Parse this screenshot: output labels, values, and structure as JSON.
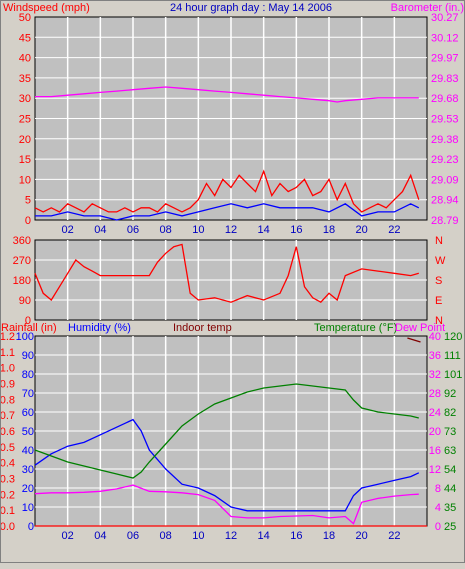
{
  "header": {
    "windspeed_label": "Windspeed (mph)",
    "title": "24 hour graph day : May 14 2006",
    "barometer_label": "Barometer (in.)"
  },
  "lower_header": {
    "rainfall_label": "Rainfall (in)",
    "humidity_label": "Humidity (%)",
    "indoor_label": "Indoor temp",
    "temperature_label": "Temperature (°F)",
    "dewpoint_label": "Dew Point"
  },
  "colors": {
    "wind": "#ff0000",
    "gust": "#0000ff",
    "barometer": "#ff00ff",
    "direction": "#ff0000",
    "rainfall": "#ff0000",
    "humidity": "#0000ff",
    "temperature": "#008000",
    "dewpoint": "#ff00ff",
    "indoor": "#800000",
    "axis_text_blue": "#0000c0",
    "grid": "#ffffff",
    "plot_bg": "#c0c0c0"
  },
  "chart_data": [
    {
      "type": "line",
      "name": "wind-panel",
      "x_ticks": [
        "02",
        "04",
        "06",
        "08",
        "10",
        "12",
        "14",
        "16",
        "18",
        "20",
        "22"
      ],
      "x_range_hours": [
        0,
        24
      ],
      "left_axis": {
        "label": "Windspeed (mph)",
        "ylim": [
          0,
          50
        ],
        "ticks": [
          "0",
          "5",
          "10",
          "15",
          "20",
          "25",
          "30",
          "35",
          "40",
          "45",
          "50"
        ]
      },
      "right_axis": {
        "label": "Barometer (in.)",
        "ylim": [
          28.79,
          30.27
        ],
        "ticks": [
          "28.79",
          "28.94",
          "29.09",
          "29.23",
          "29.38",
          "29.53",
          "29.68",
          "29.83",
          "29.97",
          "30.12",
          "30.27"
        ]
      },
      "series": [
        {
          "name": "Windspeed",
          "axis": "left",
          "color": "#ff0000",
          "x": [
            0,
            0.5,
            1,
            1.5,
            2,
            2.5,
            3,
            3.5,
            4,
            4.5,
            5,
            5.5,
            6,
            6.5,
            7,
            7.5,
            8,
            8.5,
            9,
            9.5,
            10,
            10.5,
            11,
            11.5,
            12,
            12.5,
            13,
            13.5,
            14,
            14.5,
            15,
            15.5,
            16,
            16.5,
            17,
            17.5,
            18,
            18.5,
            19,
            19.5,
            20,
            20.5,
            21,
            21.5,
            22,
            22.5,
            23,
            23.5
          ],
          "values": [
            3,
            2,
            3,
            2,
            4,
            3,
            2,
            4,
            3,
            2,
            2,
            3,
            2,
            3,
            3,
            2,
            4,
            3,
            2,
            3,
            5,
            9,
            6,
            10,
            8,
            11,
            9,
            7,
            12,
            6,
            9,
            7,
            8,
            10,
            6,
            7,
            10,
            5,
            9,
            4,
            2,
            3,
            4,
            3,
            5,
            7,
            11,
            5
          ]
        },
        {
          "name": "Gust",
          "axis": "left",
          "color": "#0000ff",
          "x": [
            0,
            1,
            2,
            3,
            4,
            5,
            6,
            7,
            8,
            9,
            10,
            11,
            12,
            13,
            14,
            15,
            16,
            17,
            18,
            19,
            20,
            21,
            22,
            23,
            23.5
          ],
          "values": [
            1,
            1,
            2,
            1,
            1,
            0,
            1,
            1,
            2,
            1,
            2,
            3,
            4,
            3,
            4,
            3,
            3,
            3,
            2,
            4,
            1,
            2,
            2,
            4,
            3
          ]
        },
        {
          "name": "Barometer",
          "axis": "right",
          "color": "#ff00ff",
          "x": [
            0,
            1,
            2,
            3,
            4,
            5,
            6,
            7,
            8,
            9,
            10,
            11,
            12,
            13,
            14,
            15,
            16,
            17,
            18,
            18.5,
            19,
            20,
            21,
            22,
            23,
            23.5
          ],
          "values": [
            29.69,
            29.69,
            29.7,
            29.71,
            29.72,
            29.73,
            29.74,
            29.75,
            29.76,
            29.75,
            29.74,
            29.73,
            29.72,
            29.71,
            29.7,
            29.69,
            29.68,
            29.67,
            29.66,
            29.65,
            29.66,
            29.67,
            29.68,
            29.68,
            29.68,
            29.68
          ]
        }
      ]
    },
    {
      "type": "line",
      "name": "direction-panel",
      "x_range_hours": [
        0,
        24
      ],
      "left_axis": {
        "ylim": [
          0,
          360
        ],
        "ticks": [
          "0",
          "90",
          "180",
          "270",
          "360"
        ]
      },
      "right_axis": {
        "ticks": [
          "N",
          "E",
          "S",
          "W",
          "N"
        ]
      },
      "series": [
        {
          "name": "Wind direction",
          "color": "#ff0000",
          "x": [
            0,
            0.5,
            1,
            1.5,
            2,
            2.5,
            3,
            3.5,
            4,
            5,
            6,
            7,
            7.5,
            8,
            8.5,
            9,
            9.5,
            10,
            11,
            12,
            13,
            14,
            15,
            15.5,
            16,
            16.5,
            17,
            17.5,
            18,
            18.5,
            19,
            20,
            21,
            22,
            23,
            23.5
          ],
          "values": [
            210,
            120,
            90,
            150,
            210,
            270,
            240,
            220,
            200,
            200,
            200,
            200,
            260,
            300,
            330,
            340,
            120,
            90,
            100,
            80,
            110,
            90,
            120,
            200,
            330,
            150,
            100,
            80,
            120,
            90,
            200,
            230,
            220,
            210,
            200,
            210
          ]
        }
      ]
    },
    {
      "type": "line",
      "name": "humidity-temp-panel",
      "x_ticks": [
        "02",
        "04",
        "06",
        "08",
        "10",
        "12",
        "14",
        "16",
        "18",
        "20",
        "22"
      ],
      "x_range_hours": [
        0,
        24
      ],
      "axes": {
        "rainfall": {
          "ticks": [
            "0.0",
            "0.1",
            "0.2",
            "0.3",
            "0.4",
            "0.5",
            "0.6",
            "0.7",
            "0.8",
            "0.9",
            "1.0",
            "1.1",
            "1.2"
          ]
        },
        "humidity": {
          "ticks": [
            "0",
            "10",
            "20",
            "30",
            "40",
            "50",
            "60",
            "70",
            "80",
            "90",
            "100"
          ]
        },
        "dewpoint": {
          "ticks": [
            "0",
            "4",
            "8",
            "12",
            "16",
            "20",
            "24",
            "28",
            "32",
            "36",
            "40"
          ]
        },
        "temperature": {
          "ticks": [
            "25",
            "35",
            "44",
            "54",
            "63",
            "73",
            "82",
            "92",
            "101",
            "111",
            "120"
          ]
        }
      },
      "series": [
        {
          "name": "Rainfall",
          "color": "#ff0000",
          "x": [
            0,
            24
          ],
          "values": [
            0.0,
            0.0
          ]
        },
        {
          "name": "Humidity",
          "color": "#0000ff",
          "x": [
            0,
            1,
            2,
            3,
            4,
            5,
            6,
            6.5,
            7,
            8,
            9,
            10,
            11,
            12,
            13,
            14,
            15,
            16,
            17,
            18,
            19,
            19.5,
            20,
            21,
            22,
            23,
            23.5
          ],
          "values": [
            32,
            38,
            42,
            44,
            48,
            52,
            56,
            50,
            40,
            30,
            22,
            20,
            16,
            10,
            8,
            8,
            8,
            8,
            8,
            8,
            8,
            16,
            20,
            22,
            24,
            26,
            28
          ]
        },
        {
          "name": "Temperature",
          "color": "#008000",
          "x": [
            0,
            1,
            2,
            3,
            4,
            5,
            6,
            6.5,
            7,
            8,
            9,
            10,
            11,
            12,
            13,
            14,
            15,
            16,
            17,
            18,
            19,
            19.5,
            20,
            21,
            22,
            23,
            23.5
          ],
          "values": [
            63,
            60,
            57,
            55,
            53,
            51,
            49,
            52,
            57,
            66,
            75,
            81,
            86,
            89,
            92,
            94,
            95,
            96,
            95,
            94,
            93,
            88,
            84,
            82,
            81,
            80,
            79
          ]
        },
        {
          "name": "Dew Point",
          "color": "#ff00ff",
          "x": [
            0,
            1,
            2,
            3,
            4,
            5,
            6,
            7,
            8,
            9,
            10,
            11,
            12,
            13,
            14,
            15,
            16,
            17,
            18,
            19,
            19.5,
            20,
            21,
            22,
            23,
            23.5
          ],
          "values": [
            6.8,
            7.0,
            7.0,
            7.1,
            7.3,
            7.8,
            8.6,
            7.3,
            7.2,
            7.0,
            6.6,
            5.4,
            2.0,
            1.7,
            1.7,
            2.0,
            2.1,
            2.2,
            1.7,
            2.0,
            0.5,
            5.0,
            5.8,
            6.3,
            6.6,
            6.7
          ]
        },
        {
          "name": "Indoor temp",
          "color": "#800000",
          "x": [
            22.8,
            23.6
          ],
          "values": [
            119,
            117
          ]
        }
      ]
    }
  ]
}
